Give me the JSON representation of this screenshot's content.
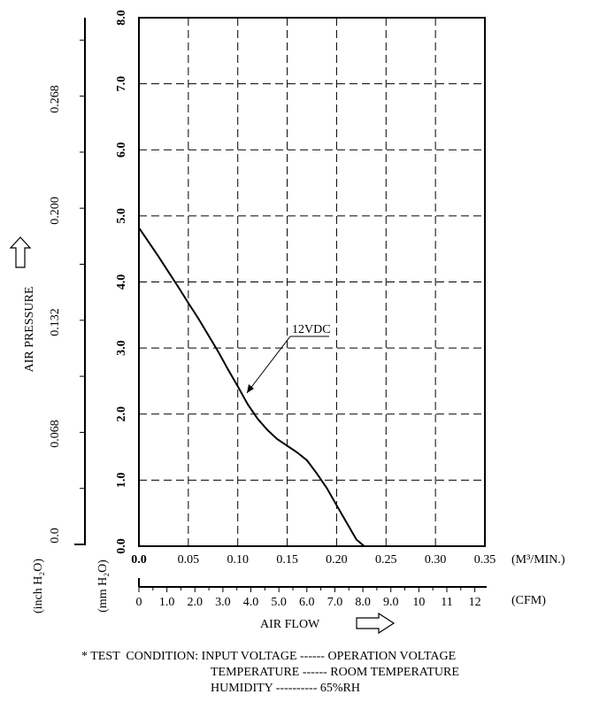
{
  "chart_data": {
    "type": "line",
    "series": [
      {
        "name": "12VDC",
        "points": [
          [
            0.0,
            4.82
          ],
          [
            0.01,
            4.6
          ],
          [
            0.02,
            4.38
          ],
          [
            0.03,
            4.15
          ],
          [
            0.04,
            3.92
          ],
          [
            0.05,
            3.68
          ],
          [
            0.06,
            3.45
          ],
          [
            0.07,
            3.2
          ],
          [
            0.08,
            2.95
          ],
          [
            0.09,
            2.68
          ],
          [
            0.1,
            2.42
          ],
          [
            0.11,
            2.15
          ],
          [
            0.12,
            1.93
          ],
          [
            0.13,
            1.76
          ],
          [
            0.14,
            1.62
          ],
          [
            0.15,
            1.52
          ],
          [
            0.16,
            1.42
          ],
          [
            0.17,
            1.3
          ],
          [
            0.18,
            1.1
          ],
          [
            0.19,
            0.88
          ],
          [
            0.2,
            0.62
          ],
          [
            0.21,
            0.36
          ],
          [
            0.22,
            0.1
          ],
          [
            0.228,
            0.0
          ]
        ]
      }
    ],
    "annotation": "12VDC",
    "y_mm": {
      "ticks": [
        "0.0",
        "1.0",
        "2.0",
        "3.0",
        "4.0",
        "5.0",
        "6.0",
        "7.0",
        "8.0"
      ],
      "range": [
        0,
        8
      ],
      "unit": "(mm H₂O)"
    },
    "y_inch": {
      "ticks": [
        "0.0",
        "0.068",
        "0.132",
        "0.200",
        "0.268"
      ],
      "unit": "(inch H₂O)"
    },
    "ylabel": "AIR PRESSURE",
    "x_m3": {
      "ticks": [
        "0.0",
        "0.05",
        "0.10",
        "0.15",
        "0.20",
        "0.25",
        "0.30",
        "0.35"
      ],
      "range": [
        0,
        0.35
      ],
      "unit": "(M³/MIN.)"
    },
    "x_cfm": {
      "ticks": [
        "0",
        "1.0",
        "2.0",
        "3.0",
        "4.0",
        "5.0",
        "6.0",
        "7.0",
        "8.0",
        "9.0",
        "10",
        "11",
        "12"
      ],
      "range": [
        0,
        12.36
      ],
      "unit": "(CFM)"
    },
    "xlabel": "AIR FLOW",
    "grid": true
  },
  "test_condition": {
    "line1": "* TEST  CONDITION: INPUT VOLTAGE ------ OPERATION VOLTAGE",
    "line2": "TEMPERATURE ------ ROOM TEMPERATURE",
    "line3": "HUMIDITY ---------- 65%RH"
  }
}
